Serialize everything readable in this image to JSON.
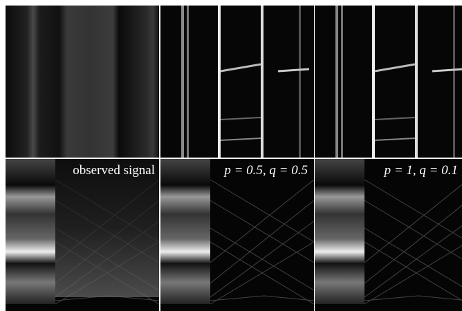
{
  "panels": [
    {
      "label": "observed signal"
    },
    {
      "label": "p = 0.5, q = 0.5"
    },
    {
      "label": "p = 1, q = 0.1"
    }
  ]
}
